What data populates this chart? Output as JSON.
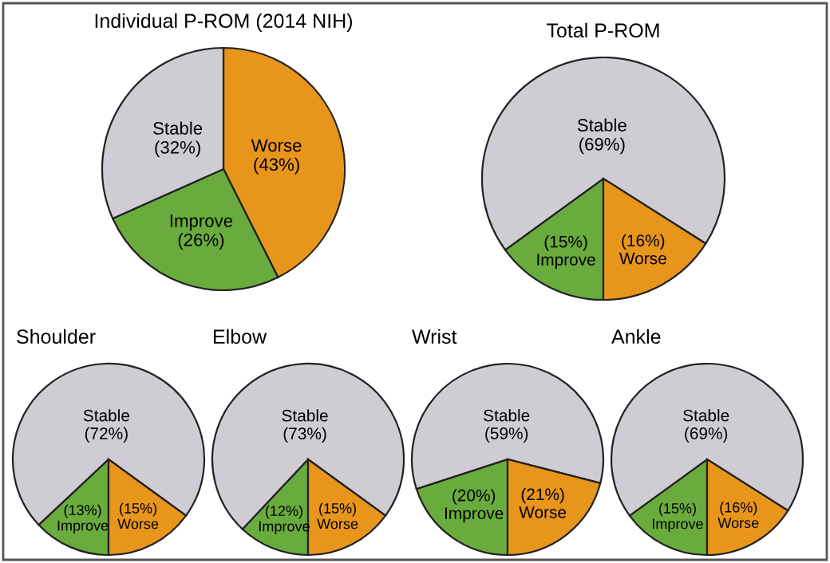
{
  "chart_data": [
    {
      "type": "pie",
      "title": "Individual P-ROM (2014 NIH)",
      "categories": [
        "Worse",
        "Improve",
        "Stable"
      ],
      "values": [
        43,
        26,
        32
      ],
      "value_labels": [
        "(43%)",
        "(26%)",
        "(32%)"
      ],
      "colors": [
        "#e8951c",
        "#6aab3e",
        "#cfcdd3"
      ]
    },
    {
      "type": "pie",
      "title": "Total P-ROM",
      "categories": [
        "Improve",
        "Stable",
        "Worse"
      ],
      "values": [
        15,
        69,
        16
      ],
      "value_labels": [
        "(15%)",
        "(69%)",
        "(16%)"
      ],
      "colors": [
        "#6aab3e",
        "#cfcdd3",
        "#e8951c"
      ]
    },
    {
      "type": "pie",
      "title": "Shoulder",
      "categories": [
        "Improve",
        "Stable",
        "Worse"
      ],
      "values": [
        13,
        72,
        15
      ],
      "value_labels": [
        "(13%)",
        "(72%)",
        "(15%)"
      ],
      "colors": [
        "#6aab3e",
        "#cfcdd3",
        "#e8951c"
      ]
    },
    {
      "type": "pie",
      "title": "Elbow",
      "categories": [
        "Improve",
        "Stable",
        "Worse"
      ],
      "values": [
        12,
        73,
        15
      ],
      "value_labels": [
        "(12%)",
        "(73%)",
        "(15%)"
      ],
      "colors": [
        "#6aab3e",
        "#cfcdd3",
        "#e8951c"
      ]
    },
    {
      "type": "pie",
      "title": "Wrist",
      "categories": [
        "Improve",
        "Stable",
        "Worse"
      ],
      "values": [
        20,
        59,
        21
      ],
      "value_labels": [
        "(20%)",
        "(59%)",
        "(21%)"
      ],
      "colors": [
        "#6aab3e",
        "#cfcdd3",
        "#e8951c"
      ]
    },
    {
      "type": "pie",
      "title": "Ankle",
      "categories": [
        "Improve",
        "Stable",
        "Worse"
      ],
      "values": [
        15,
        69,
        16
      ],
      "value_labels": [
        "(15%)",
        "(69%)",
        "(16%)"
      ],
      "colors": [
        "#6aab3e",
        "#cfcdd3",
        "#e8951c"
      ]
    }
  ]
}
